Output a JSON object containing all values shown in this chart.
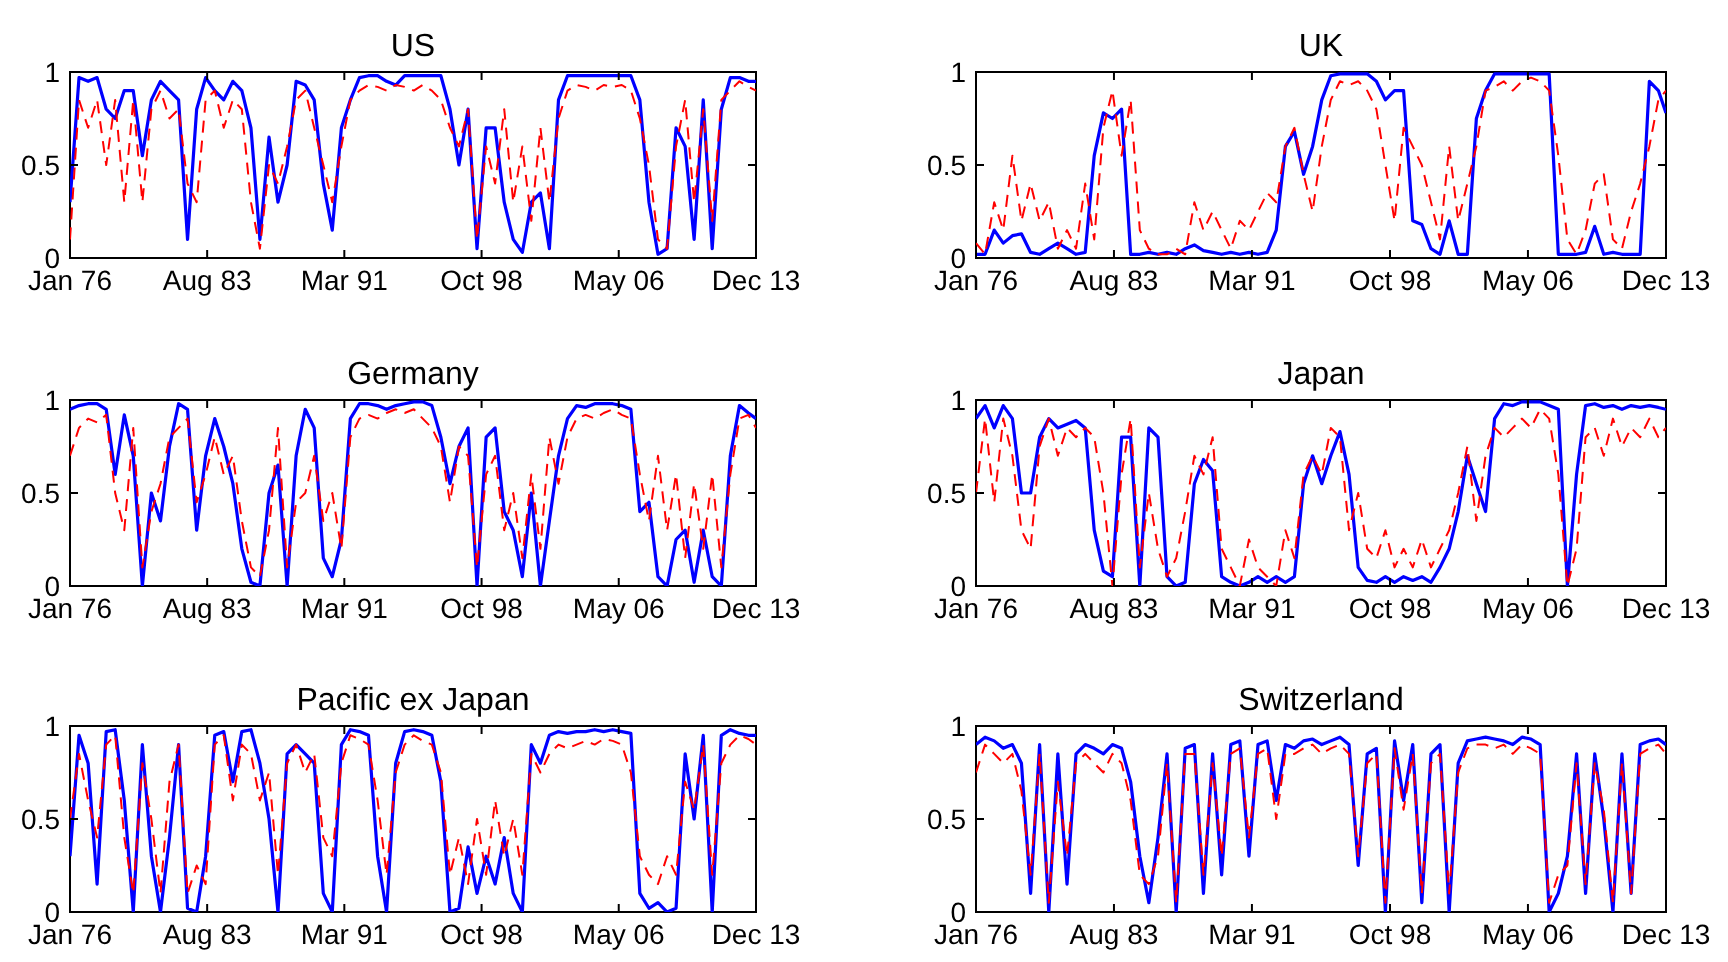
{
  "chart_data": [
    {
      "type": "line",
      "title": "US",
      "xlim": [
        "1976-01",
        "2013-12"
      ],
      "ylim": [
        0,
        1
      ],
      "yticks": [
        0,
        0.5,
        1
      ],
      "xticks": [
        {
          "value": "1976-01",
          "label": "Jan 76"
        },
        {
          "value": "1983-08",
          "label": "Aug 83"
        },
        {
          "value": "1991-03",
          "label": "Mar 91"
        },
        {
          "value": "1998-10",
          "label": "Oct 98"
        },
        {
          "value": "2006-05",
          "label": "May 06"
        },
        {
          "value": "2013-12",
          "label": "Dec 13"
        }
      ],
      "x": [
        "1976-01",
        "1976-07",
        "1977-01",
        "1977-07",
        "1978-01",
        "1978-07",
        "1979-01",
        "1979-07",
        "1980-01",
        "1980-07",
        "1981-01",
        "1981-07",
        "1982-01",
        "1982-07",
        "1983-01",
        "1983-07",
        "1984-01",
        "1984-07",
        "1985-01",
        "1985-07",
        "1986-01",
        "1986-07",
        "1987-01",
        "1987-07",
        "1988-01",
        "1988-07",
        "1989-01",
        "1989-07",
        "1990-01",
        "1990-07",
        "1991-01",
        "1991-07",
        "1992-01",
        "1992-07",
        "1993-01",
        "1993-07",
        "1994-01",
        "1994-07",
        "1995-01",
        "1995-07",
        "1996-01",
        "1996-07",
        "1997-01",
        "1997-07",
        "1998-01",
        "1998-07",
        "1999-01",
        "1999-07",
        "2000-01",
        "2000-07",
        "2001-01",
        "2001-07",
        "2002-01",
        "2002-07",
        "2003-01",
        "2003-07",
        "2004-01",
        "2004-07",
        "2005-01",
        "2005-07",
        "2006-01",
        "2006-07",
        "2007-01",
        "2007-07",
        "2008-01",
        "2008-07",
        "2009-01",
        "2009-07",
        "2010-01",
        "2010-07",
        "2011-01",
        "2011-07",
        "2012-01",
        "2012-07",
        "2013-01",
        "2013-07",
        "2013-12"
      ],
      "series": [
        {
          "color": "#0000ff",
          "line_style": "solid",
          "values": [
            0.3,
            0.97,
            0.95,
            0.97,
            0.8,
            0.75,
            0.9,
            0.9,
            0.55,
            0.85,
            0.95,
            0.9,
            0.85,
            0.1,
            0.8,
            0.97,
            0.9,
            0.85,
            0.95,
            0.9,
            0.7,
            0.1,
            0.65,
            0.3,
            0.5,
            0.95,
            0.93,
            0.85,
            0.4,
            0.15,
            0.7,
            0.85,
            0.97,
            0.98,
            0.98,
            0.95,
            0.93,
            0.98,
            0.98,
            0.98,
            0.98,
            0.98,
            0.8,
            0.5,
            0.8,
            0.05,
            0.7,
            0.7,
            0.3,
            0.1,
            0.03,
            0.3,
            0.35,
            0.05,
            0.85,
            0.98,
            0.98,
            0.98,
            0.98,
            0.98,
            0.98,
            0.98,
            0.98,
            0.85,
            0.3,
            0.02,
            0.05,
            0.7,
            0.6,
            0.1,
            0.85,
            0.05,
            0.8,
            0.97,
            0.97,
            0.95,
            0.95
          ]
        },
        {
          "color": "#ff0000",
          "line_style": "dashed",
          "values": [
            0.1,
            0.85,
            0.7,
            0.85,
            0.5,
            0.85,
            0.3,
            0.85,
            0.3,
            0.8,
            0.9,
            0.75,
            0.8,
            0.4,
            0.3,
            0.85,
            0.9,
            0.7,
            0.85,
            0.8,
            0.3,
            0.05,
            0.5,
            0.4,
            0.6,
            0.85,
            0.9,
            0.7,
            0.5,
            0.3,
            0.6,
            0.85,
            0.9,
            0.93,
            0.92,
            0.9,
            0.93,
            0.92,
            0.9,
            0.93,
            0.9,
            0.85,
            0.7,
            0.6,
            0.8,
            0.1,
            0.6,
            0.4,
            0.8,
            0.3,
            0.6,
            0.2,
            0.7,
            0.3,
            0.75,
            0.9,
            0.93,
            0.92,
            0.9,
            0.93,
            0.92,
            0.93,
            0.9,
            0.75,
            0.5,
            0.1,
            0.05,
            0.6,
            0.85,
            0.3,
            0.8,
            0.2,
            0.85,
            0.9,
            0.95,
            0.92,
            0.9
          ]
        }
      ]
    },
    {
      "type": "line",
      "title": "UK",
      "xlim": [
        "1976-01",
        "2013-12"
      ],
      "ylim": [
        0,
        1
      ],
      "yticks": [
        0,
        0.5,
        1
      ],
      "xticks": [
        {
          "value": "1976-01",
          "label": "Jan 76"
        },
        {
          "value": "1983-08",
          "label": "Aug 83"
        },
        {
          "value": "1991-03",
          "label": "Mar 91"
        },
        {
          "value": "1998-10",
          "label": "Oct 98"
        },
        {
          "value": "2006-05",
          "label": "May 06"
        },
        {
          "value": "2013-12",
          "label": "Dec 13"
        }
      ],
      "x": [
        "1976-01",
        "1976-07",
        "1977-01",
        "1977-07",
        "1978-01",
        "1978-07",
        "1979-01",
        "1979-07",
        "1980-01",
        "1980-07",
        "1981-01",
        "1981-07",
        "1982-01",
        "1982-07",
        "1983-01",
        "1983-07",
        "1984-01",
        "1984-07",
        "1985-01",
        "1985-07",
        "1986-01",
        "1986-07",
        "1987-01",
        "1987-07",
        "1988-01",
        "1988-07",
        "1989-01",
        "1989-07",
        "1990-01",
        "1990-07",
        "1991-01",
        "1991-07",
        "1992-01",
        "1992-07",
        "1993-01",
        "1993-07",
        "1994-01",
        "1994-07",
        "1995-01",
        "1995-07",
        "1996-01",
        "1996-07",
        "1997-01",
        "1997-07",
        "1998-01",
        "1998-07",
        "1999-01",
        "1999-07",
        "2000-01",
        "2000-07",
        "2001-01",
        "2001-07",
        "2002-01",
        "2002-07",
        "2003-01",
        "2003-07",
        "2004-01",
        "2004-07",
        "2005-01",
        "2005-07",
        "2006-01",
        "2006-07",
        "2007-01",
        "2007-07",
        "2008-01",
        "2008-07",
        "2009-01",
        "2009-07",
        "2010-01",
        "2010-07",
        "2011-01",
        "2011-07",
        "2012-01",
        "2012-07",
        "2013-01",
        "2013-07",
        "2013-12"
      ],
      "series": [
        {
          "color": "#0000ff",
          "line_style": "solid",
          "values": [
            0.02,
            0.02,
            0.15,
            0.08,
            0.12,
            0.13,
            0.03,
            0.02,
            0.05,
            0.08,
            0.05,
            0.02,
            0.03,
            0.55,
            0.78,
            0.75,
            0.8,
            0.02,
            0.02,
            0.03,
            0.02,
            0.03,
            0.02,
            0.05,
            0.07,
            0.04,
            0.03,
            0.02,
            0.03,
            0.02,
            0.03,
            0.02,
            0.03,
            0.15,
            0.6,
            0.68,
            0.45,
            0.6,
            0.85,
            0.98,
            0.99,
            0.99,
            0.99,
            0.99,
            0.95,
            0.85,
            0.9,
            0.9,
            0.2,
            0.18,
            0.05,
            0.02,
            0.2,
            0.02,
            0.02,
            0.75,
            0.9,
            0.99,
            0.99,
            0.99,
            0.99,
            0.99,
            0.99,
            0.99,
            0.02,
            0.02,
            0.02,
            0.03,
            0.17,
            0.02,
            0.03,
            0.02,
            0.02,
            0.02,
            0.95,
            0.9,
            0.78
          ]
        },
        {
          "color": "#ff0000",
          "line_style": "dashed",
          "values": [
            0.08,
            0.02,
            0.3,
            0.15,
            0.55,
            0.2,
            0.4,
            0.2,
            0.3,
            0.05,
            0.15,
            0.05,
            0.4,
            0.1,
            0.7,
            0.9,
            0.55,
            0.85,
            0.15,
            0.05,
            0.02,
            0.02,
            0.05,
            0.02,
            0.3,
            0.15,
            0.25,
            0.15,
            0.05,
            0.2,
            0.15,
            0.25,
            0.35,
            0.3,
            0.6,
            0.7,
            0.45,
            0.25,
            0.6,
            0.85,
            0.95,
            0.93,
            0.95,
            0.9,
            0.8,
            0.5,
            0.2,
            0.7,
            0.6,
            0.5,
            0.3,
            0.1,
            0.6,
            0.2,
            0.4,
            0.6,
            0.9,
            0.92,
            0.95,
            0.9,
            0.95,
            0.97,
            0.95,
            0.9,
            0.55,
            0.1,
            0.02,
            0.15,
            0.4,
            0.45,
            0.1,
            0.05,
            0.25,
            0.4,
            0.6,
            0.85,
            0.9
          ]
        }
      ]
    },
    {
      "type": "line",
      "title": "Germany",
      "xlim": [
        "1976-01",
        "2013-12"
      ],
      "ylim": [
        0,
        1
      ],
      "yticks": [
        0,
        0.5,
        1
      ],
      "xticks": [
        {
          "value": "1976-01",
          "label": "Jan 76"
        },
        {
          "value": "1983-08",
          "label": "Aug 83"
        },
        {
          "value": "1991-03",
          "label": "Mar 91"
        },
        {
          "value": "1998-10",
          "label": "Oct 98"
        },
        {
          "value": "2006-05",
          "label": "May 06"
        },
        {
          "value": "2013-12",
          "label": "Dec 13"
        }
      ],
      "x": [
        "1976-01",
        "1976-07",
        "1977-01",
        "1977-07",
        "1978-01",
        "1978-07",
        "1979-01",
        "1979-07",
        "1980-01",
        "1980-07",
        "1981-01",
        "1981-07",
        "1982-01",
        "1982-07",
        "1983-01",
        "1983-07",
        "1984-01",
        "1984-07",
        "1985-01",
        "1985-07",
        "1986-01",
        "1986-07",
        "1987-01",
        "1987-07",
        "1988-01",
        "1988-07",
        "1989-01",
        "1989-07",
        "1990-01",
        "1990-07",
        "1991-01",
        "1991-07",
        "1992-01",
        "1992-07",
        "1993-01",
        "1993-07",
        "1994-01",
        "1994-07",
        "1995-01",
        "1995-07",
        "1996-01",
        "1996-07",
        "1997-01",
        "1997-07",
        "1998-01",
        "1998-07",
        "1999-01",
        "1999-07",
        "2000-01",
        "2000-07",
        "2001-01",
        "2001-07",
        "2002-01",
        "2002-07",
        "2003-01",
        "2003-07",
        "2004-01",
        "2004-07",
        "2005-01",
        "2005-07",
        "2006-01",
        "2006-07",
        "2007-01",
        "2007-07",
        "2008-01",
        "2008-07",
        "2009-01",
        "2009-07",
        "2010-01",
        "2010-07",
        "2011-01",
        "2011-07",
        "2012-01",
        "2012-07",
        "2013-01",
        "2013-07",
        "2013-12"
      ],
      "series": [
        {
          "color": "#0000ff",
          "line_style": "solid",
          "values": [
            0.95,
            0.97,
            0.98,
            0.98,
            0.95,
            0.6,
            0.92,
            0.7,
            0,
            0.5,
            0.35,
            0.75,
            0.98,
            0.95,
            0.3,
            0.7,
            0.9,
            0.75,
            0.55,
            0.2,
            0.02,
            0,
            0.5,
            0.65,
            0,
            0.7,
            0.95,
            0.85,
            0.15,
            0.05,
            0.25,
            0.9,
            0.98,
            0.98,
            0.97,
            0.95,
            0.97,
            0.98,
            0.99,
            0.99,
            0.97,
            0.8,
            0.55,
            0.75,
            0.85,
            0,
            0.8,
            0.85,
            0.4,
            0.3,
            0.05,
            0.5,
            0,
            0.35,
            0.7,
            0.9,
            0.97,
            0.96,
            0.98,
            0.98,
            0.98,
            0.97,
            0.95,
            0.4,
            0.45,
            0.05,
            0,
            0.25,
            0.3,
            0.02,
            0.3,
            0.05,
            0,
            0.7,
            0.97,
            0.93,
            0.9
          ]
        },
        {
          "color": "#ff0000",
          "line_style": "dashed",
          "values": [
            0.7,
            0.85,
            0.9,
            0.88,
            0.92,
            0.5,
            0.3,
            0.85,
            0.1,
            0.4,
            0.55,
            0.8,
            0.85,
            0.9,
            0.45,
            0.6,
            0.8,
            0.6,
            0.7,
            0.35,
            0.1,
            0.05,
            0.3,
            0.85,
            0.1,
            0.45,
            0.5,
            0.7,
            0.35,
            0.5,
            0.2,
            0.8,
            0.9,
            0.92,
            0.9,
            0.93,
            0.95,
            0.93,
            0.95,
            0.9,
            0.85,
            0.75,
            0.45,
            0.75,
            0.7,
            0.1,
            0.6,
            0.7,
            0.3,
            0.5,
            0.15,
            0.6,
            0.2,
            0.8,
            0.55,
            0.8,
            0.9,
            0.92,
            0.9,
            0.93,
            0.95,
            0.92,
            0.9,
            0.6,
            0.35,
            0.7,
            0.3,
            0.6,
            0.15,
            0.55,
            0.2,
            0.6,
            0.1,
            0.6,
            0.9,
            0.92,
            0.85
          ]
        }
      ]
    },
    {
      "type": "line",
      "title": "Japan",
      "xlim": [
        "1976-01",
        "2013-12"
      ],
      "ylim": [
        0,
        1
      ],
      "yticks": [
        0,
        0.5,
        1
      ],
      "xticks": [
        {
          "value": "1976-01",
          "label": "Jan 76"
        },
        {
          "value": "1983-08",
          "label": "Aug 83"
        },
        {
          "value": "1991-03",
          "label": "Mar 91"
        },
        {
          "value": "1998-10",
          "label": "Oct 98"
        },
        {
          "value": "2006-05",
          "label": "May 06"
        },
        {
          "value": "2013-12",
          "label": "Dec 13"
        }
      ],
      "x": [
        "1976-01",
        "1976-07",
        "1977-01",
        "1977-07",
        "1978-01",
        "1978-07",
        "1979-01",
        "1979-07",
        "1980-01",
        "1980-07",
        "1981-01",
        "1981-07",
        "1982-01",
        "1982-07",
        "1983-01",
        "1983-07",
        "1984-01",
        "1984-07",
        "1985-01",
        "1985-07",
        "1986-01",
        "1986-07",
        "1987-01",
        "1987-07",
        "1988-01",
        "1988-07",
        "1989-01",
        "1989-07",
        "1990-01",
        "1990-07",
        "1991-01",
        "1991-07",
        "1992-01",
        "1992-07",
        "1993-01",
        "1993-07",
        "1994-01",
        "1994-07",
        "1995-01",
        "1995-07",
        "1996-01",
        "1996-07",
        "1997-01",
        "1997-07",
        "1998-01",
        "1998-07",
        "1999-01",
        "1999-07",
        "2000-01",
        "2000-07",
        "2001-01",
        "2001-07",
        "2002-01",
        "2002-07",
        "2003-01",
        "2003-07",
        "2004-01",
        "2004-07",
        "2005-01",
        "2005-07",
        "2006-01",
        "2006-07",
        "2007-01",
        "2007-07",
        "2008-01",
        "2008-07",
        "2009-01",
        "2009-07",
        "2010-01",
        "2010-07",
        "2011-01",
        "2011-07",
        "2012-01",
        "2012-07",
        "2013-01",
        "2013-07",
        "2013-12"
      ],
      "series": [
        {
          "color": "#0000ff",
          "line_style": "solid",
          "values": [
            0.9,
            0.97,
            0.85,
            0.97,
            0.9,
            0.5,
            0.5,
            0.8,
            0.9,
            0.85,
            0.87,
            0.89,
            0.85,
            0.3,
            0.08,
            0.05,
            0.8,
            0.8,
            0,
            0.85,
            0.8,
            0.05,
            0,
            0.02,
            0.55,
            0.68,
            0.62,
            0.05,
            0.02,
            0,
            0.02,
            0.05,
            0.02,
            0.05,
            0.02,
            0.05,
            0.55,
            0.7,
            0.55,
            0.7,
            0.83,
            0.6,
            0.1,
            0.03,
            0.02,
            0.05,
            0.02,
            0.05,
            0.03,
            0.05,
            0.02,
            0.1,
            0.2,
            0.4,
            0.7,
            0.55,
            0.4,
            0.9,
            0.98,
            0.97,
            0.99,
            0.99,
            0.99,
            0.97,
            0.95,
            0,
            0.6,
            0.97,
            0.98,
            0.96,
            0.97,
            0.95,
            0.97,
            0.96,
            0.97,
            0.96,
            0.95
          ]
        },
        {
          "color": "#ff0000",
          "line_style": "dashed",
          "values": [
            0.5,
            0.9,
            0.45,
            0.9,
            0.7,
            0.3,
            0.2,
            0.75,
            0.9,
            0.7,
            0.85,
            0.8,
            0.85,
            0.8,
            0.5,
            0,
            0.6,
            0.9,
            0.1,
            0.5,
            0.2,
            0.05,
            0.15,
            0.4,
            0.7,
            0.6,
            0.8,
            0.2,
            0.1,
            0,
            0.25,
            0.1,
            0.05,
            0,
            0.3,
            0.15,
            0.6,
            0.7,
            0.6,
            0.85,
            0.8,
            0.3,
            0.5,
            0.2,
            0.15,
            0.3,
            0.1,
            0.2,
            0.1,
            0.25,
            0.1,
            0.2,
            0.3,
            0.5,
            0.75,
            0.35,
            0.7,
            0.85,
            0.8,
            0.85,
            0.9,
            0.85,
            0.95,
            0.9,
            0.6,
            0,
            0.2,
            0.8,
            0.85,
            0.7,
            0.9,
            0.75,
            0.85,
            0.8,
            0.9,
            0.8,
            0.85
          ]
        }
      ]
    },
    {
      "type": "line",
      "title": "Pacific ex Japan",
      "xlim": [
        "1976-01",
        "2013-12"
      ],
      "ylim": [
        0,
        1
      ],
      "yticks": [
        0,
        0.5,
        1
      ],
      "xticks": [
        {
          "value": "1976-01",
          "label": "Jan 76"
        },
        {
          "value": "1983-08",
          "label": "Aug 83"
        },
        {
          "value": "1991-03",
          "label": "Mar 91"
        },
        {
          "value": "1998-10",
          "label": "Oct 98"
        },
        {
          "value": "2006-05",
          "label": "May 06"
        },
        {
          "value": "2013-12",
          "label": "Dec 13"
        }
      ],
      "x": [
        "1976-01",
        "1976-07",
        "1977-01",
        "1977-07",
        "1978-01",
        "1978-07",
        "1979-01",
        "1979-07",
        "1980-01",
        "1980-07",
        "1981-01",
        "1981-07",
        "1982-01",
        "1982-07",
        "1983-01",
        "1983-07",
        "1984-01",
        "1984-07",
        "1985-01",
        "1985-07",
        "1986-01",
        "1986-07",
        "1987-01",
        "1987-07",
        "1988-01",
        "1988-07",
        "1989-01",
        "1989-07",
        "1990-01",
        "1990-07",
        "1991-01",
        "1991-07",
        "1992-01",
        "1992-07",
        "1993-01",
        "1993-07",
        "1994-01",
        "1994-07",
        "1995-01",
        "1995-07",
        "1996-01",
        "1996-07",
        "1997-01",
        "1997-07",
        "1998-01",
        "1998-07",
        "1999-01",
        "1999-07",
        "2000-01",
        "2000-07",
        "2001-01",
        "2001-07",
        "2002-01",
        "2002-07",
        "2003-01",
        "2003-07",
        "2004-01",
        "2004-07",
        "2005-01",
        "2005-07",
        "2006-01",
        "2006-07",
        "2007-01",
        "2007-07",
        "2008-01",
        "2008-07",
        "2009-01",
        "2009-07",
        "2010-01",
        "2010-07",
        "2011-01",
        "2011-07",
        "2012-01",
        "2012-07",
        "2013-01",
        "2013-07",
        "2013-12"
      ],
      "series": [
        {
          "color": "#0000ff",
          "line_style": "solid",
          "values": [
            0.3,
            0.95,
            0.8,
            0.15,
            0.97,
            0.98,
            0.6,
            0,
            0.9,
            0.3,
            0,
            0.4,
            0.9,
            0.02,
            0,
            0.3,
            0.95,
            0.97,
            0.7,
            0.97,
            0.98,
            0.8,
            0.5,
            0,
            0.85,
            0.9,
            0.85,
            0.8,
            0.1,
            0,
            0.9,
            0.98,
            0.97,
            0.95,
            0.3,
            0,
            0.8,
            0.97,
            0.98,
            0.97,
            0.95,
            0.7,
            0,
            0.02,
            0.35,
            0.1,
            0.3,
            0.15,
            0.4,
            0.1,
            0,
            0.9,
            0.8,
            0.95,
            0.97,
            0.96,
            0.97,
            0.97,
            0.98,
            0.97,
            0.98,
            0.97,
            0.96,
            0.1,
            0.02,
            0.05,
            0,
            0.02,
            0.85,
            0.5,
            0.95,
            0,
            0.95,
            0.98,
            0.96,
            0.95,
            0.95
          ]
        },
        {
          "color": "#ff0000",
          "line_style": "dashed",
          "values": [
            0.5,
            0.85,
            0.6,
            0.4,
            0.9,
            0.95,
            0.4,
            0.1,
            0.8,
            0.5,
            0.1,
            0.7,
            0.9,
            0.1,
            0.25,
            0.15,
            0.9,
            0.95,
            0.6,
            0.9,
            0.85,
            0.6,
            0.75,
            0.2,
            0.8,
            0.9,
            0.75,
            0.85,
            0.4,
            0.3,
            0.8,
            0.95,
            0.93,
            0.9,
            0.6,
            0.2,
            0.75,
            0.9,
            0.95,
            0.92,
            0.9,
            0.75,
            0.2,
            0.4,
            0.15,
            0.5,
            0.2,
            0.6,
            0.3,
            0.5,
            0.2,
            0.85,
            0.75,
            0.85,
            0.9,
            0.88,
            0.9,
            0.92,
            0.9,
            0.93,
            0.92,
            0.9,
            0.75,
            0.3,
            0.2,
            0.15,
            0.3,
            0.2,
            0.7,
            0.55,
            0.9,
            0.2,
            0.8,
            0.9,
            0.95,
            0.93,
            0.9
          ]
        }
      ]
    },
    {
      "type": "line",
      "title": "Switzerland",
      "xlim": [
        "1976-01",
        "2013-12"
      ],
      "ylim": [
        0,
        1
      ],
      "yticks": [
        0,
        0.5,
        1
      ],
      "xticks": [
        {
          "value": "1976-01",
          "label": "Jan 76"
        },
        {
          "value": "1983-08",
          "label": "Aug 83"
        },
        {
          "value": "1991-03",
          "label": "Mar 91"
        },
        {
          "value": "1998-10",
          "label": "Oct 98"
        },
        {
          "value": "2006-05",
          "label": "May 06"
        },
        {
          "value": "2013-12",
          "label": "Dec 13"
        }
      ],
      "x": [
        "1976-01",
        "1976-07",
        "1977-01",
        "1977-07",
        "1978-01",
        "1978-07",
        "1979-01",
        "1979-07",
        "1980-01",
        "1980-07",
        "1981-01",
        "1981-07",
        "1982-01",
        "1982-07",
        "1983-01",
        "1983-07",
        "1984-01",
        "1984-07",
        "1985-01",
        "1985-07",
        "1986-01",
        "1986-07",
        "1987-01",
        "1987-07",
        "1988-01",
        "1988-07",
        "1989-01",
        "1989-07",
        "1990-01",
        "1990-07",
        "1991-01",
        "1991-07",
        "1992-01",
        "1992-07",
        "1993-01",
        "1993-07",
        "1994-01",
        "1994-07",
        "1995-01",
        "1995-07",
        "1996-01",
        "1996-07",
        "1997-01",
        "1997-07",
        "1998-01",
        "1998-07",
        "1999-01",
        "1999-07",
        "2000-01",
        "2000-07",
        "2001-01",
        "2001-07",
        "2002-01",
        "2002-07",
        "2003-01",
        "2003-07",
        "2004-01",
        "2004-07",
        "2005-01",
        "2005-07",
        "2006-01",
        "2006-07",
        "2007-01",
        "2007-07",
        "2008-01",
        "2008-07",
        "2009-01",
        "2009-07",
        "2010-01",
        "2010-07",
        "2011-01",
        "2011-07",
        "2012-01",
        "2012-07",
        "2013-01",
        "2013-07",
        "2013-12"
      ],
      "series": [
        {
          "color": "#0000ff",
          "line_style": "solid",
          "values": [
            0.9,
            0.94,
            0.92,
            0.88,
            0.9,
            0.8,
            0.1,
            0.9,
            0,
            0.85,
            0.15,
            0.85,
            0.9,
            0.88,
            0.85,
            0.9,
            0.88,
            0.7,
            0.3,
            0.05,
            0.4,
            0.85,
            0,
            0.88,
            0.9,
            0.1,
            0.85,
            0.2,
            0.9,
            0.92,
            0.3,
            0.9,
            0.92,
            0.6,
            0.9,
            0.88,
            0.92,
            0.93,
            0.9,
            0.92,
            0.94,
            0.9,
            0.25,
            0.85,
            0.88,
            0,
            0.92,
            0.6,
            0.9,
            0.05,
            0.85,
            0.9,
            0,
            0.8,
            0.92,
            0.93,
            0.94,
            0.93,
            0.92,
            0.9,
            0.94,
            0.93,
            0.9,
            0,
            0.1,
            0.3,
            0.85,
            0.1,
            0.85,
            0.5,
            0,
            0.85,
            0.1,
            0.9,
            0.92,
            0.93,
            0.9
          ]
        },
        {
          "color": "#ff0000",
          "line_style": "dashed",
          "values": [
            0.75,
            0.9,
            0.85,
            0.8,
            0.85,
            0.65,
            0.2,
            0.85,
            0.05,
            0.7,
            0.3,
            0.8,
            0.85,
            0.8,
            0.75,
            0.85,
            0.8,
            0.6,
            0.2,
            0.15,
            0.3,
            0.8,
            0.05,
            0.85,
            0.85,
            0.2,
            0.8,
            0.3,
            0.85,
            0.88,
            0.4,
            0.85,
            0.88,
            0.5,
            0.85,
            0.85,
            0.88,
            0.9,
            0.85,
            0.88,
            0.9,
            0.85,
            0.3,
            0.8,
            0.85,
            0.05,
            0.88,
            0.55,
            0.85,
            0.1,
            0.8,
            0.85,
            0.1,
            0.75,
            0.88,
            0.9,
            0.9,
            0.88,
            0.9,
            0.85,
            0.9,
            0.88,
            0.85,
            0.05,
            0.2,
            0.25,
            0.8,
            0.15,
            0.8,
            0.55,
            0.05,
            0.8,
            0.1,
            0.85,
            0.88,
            0.9,
            0.85
          ]
        }
      ]
    }
  ]
}
